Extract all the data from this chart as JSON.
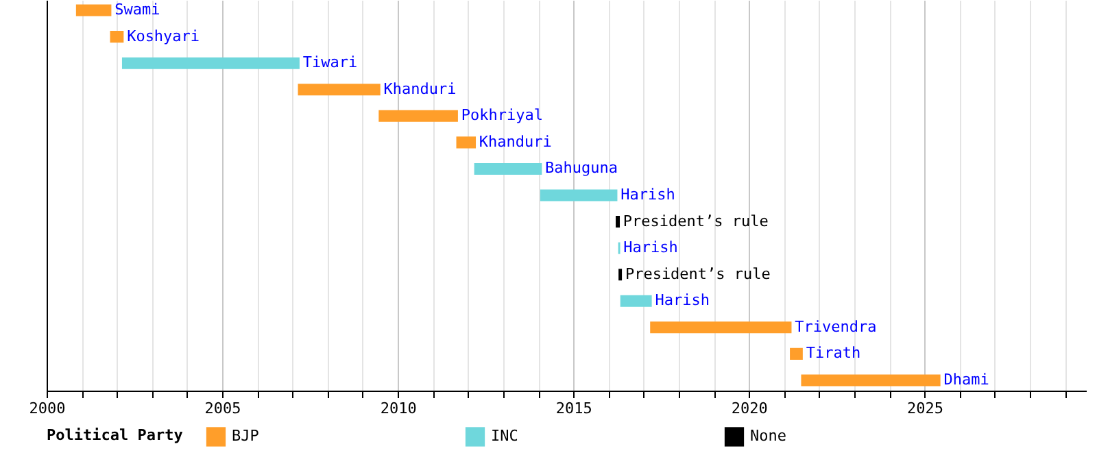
{
  "chart_data": {
    "type": "bar",
    "orientation": "horizontal",
    "categories": [
      "Swami",
      "Koshyari",
      "Tiwari",
      "Khanduri",
      "Pokhriyal",
      "Khanduri",
      "Bahuguna",
      "Harish",
      "President’s rule",
      "Harish",
      "President’s rule",
      "Harish",
      "Trivendra",
      "Tirath",
      "Dhami"
    ],
    "series": [
      {
        "name": "BJP",
        "color": "#ff9e2a",
        "base": [
          2000.86,
          2001.83,
          null,
          2007.18,
          2009.48,
          2011.69,
          null,
          null,
          null,
          null,
          null,
          null,
          2017.21,
          2021.19,
          2021.51
        ],
        "values": [
          0.96,
          0.34,
          null,
          2.3,
          2.21,
          0.51,
          null,
          null,
          null,
          null,
          null,
          null,
          3.98,
          0.32,
          3.92
        ]
      },
      {
        "name": "INC",
        "color": "#6fd7dc",
        "base": [
          null,
          null,
          2002.17,
          null,
          null,
          null,
          2012.2,
          2014.08,
          null,
          2016.3,
          null,
          2016.36,
          null,
          null,
          null
        ],
        "values": [
          null,
          null,
          5.01,
          null,
          null,
          null,
          1.88,
          2.15,
          null,
          0.01,
          null,
          0.85,
          null,
          null,
          null
        ]
      },
      {
        "name": "None",
        "color": "#000000",
        "base": [
          null,
          null,
          null,
          null,
          null,
          null,
          null,
          null,
          2016.23,
          null,
          2016.31,
          null,
          null,
          null,
          null
        ],
        "values": [
          null,
          null,
          null,
          null,
          null,
          null,
          null,
          null,
          0.07,
          null,
          0.05,
          null,
          null,
          null,
          null
        ]
      }
    ],
    "legend_title": "Political Party",
    "legend": "bottom",
    "xlim": [
      2000,
      2029.6
    ],
    "xticks": [
      2000,
      {
        "value": 2001,
        "label": null
      },
      {
        "value": 2002,
        "label": null
      },
      {
        "value": 2003,
        "label": null
      },
      {
        "value": 2004,
        "label": null
      },
      2005,
      {
        "value": 2006,
        "label": null
      },
      {
        "value": 2007,
        "label": null
      },
      {
        "value": 2008,
        "label": null
      },
      {
        "value": 2009,
        "label": null
      },
      2010,
      {
        "value": 2011,
        "label": null
      },
      {
        "value": 2012,
        "label": null
      },
      {
        "value": 2013,
        "label": null
      },
      {
        "value": 2014,
        "label": null
      },
      2015,
      {
        "value": 2016,
        "label": null
      },
      {
        "value": 2017,
        "label": null
      },
      {
        "value": 2018,
        "label": null
      },
      {
        "value": 2019,
        "label": null
      },
      2020,
      {
        "value": 2021,
        "label": null
      },
      {
        "value": 2022,
        "label": null
      },
      {
        "value": 2023,
        "label": null
      },
      {
        "value": 2024,
        "label": null
      },
      2025,
      {
        "value": 2026,
        "label": null
      },
      {
        "value": 2027,
        "label": null
      },
      {
        "value": 2028,
        "label": null
      },
      {
        "value": 2029,
        "label": null
      }
    ],
    "grid": "x",
    "tick_labels": "x"
  }
}
